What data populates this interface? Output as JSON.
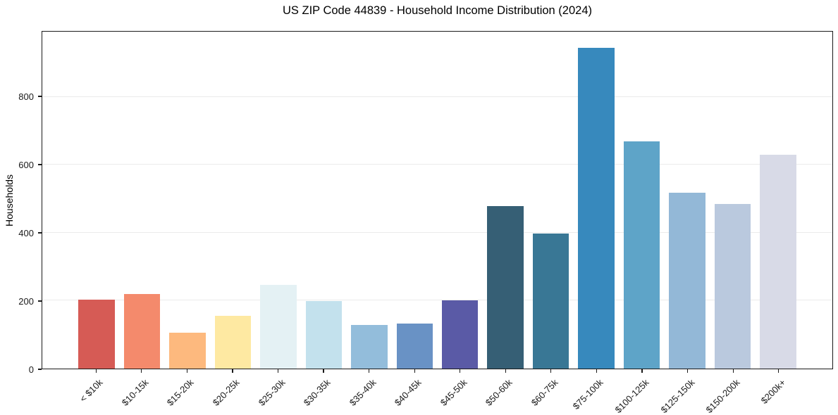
{
  "header": {
    "title": "US ZIP Code 44839 - Household Income Distribution (2024)"
  },
  "chart_data": {
    "type": "bar",
    "title": "US ZIP Code 44839 - Household Income Distribution (2024)",
    "xlabel": "",
    "ylabel": "Households",
    "categories": [
      "< $10k",
      "$10-15k",
      "$15-20k",
      "$20-25k",
      "$25-30k",
      "$30-35k",
      "$35-40k",
      "$40-45k",
      "$45-50k",
      "$50-60k",
      "$60-75k",
      "$75-100k",
      "$100-125k",
      "$125-150k",
      "$150-200k",
      "$200k+"
    ],
    "values": [
      203,
      220,
      105,
      155,
      247,
      198,
      128,
      132,
      200,
      478,
      398,
      945,
      668,
      517,
      484,
      630
    ],
    "bar_colors": [
      "#d65b55",
      "#f48a6c",
      "#fdb97e",
      "#fee9a2",
      "#e4f1f4",
      "#c3e1ed",
      "#93bddb",
      "#6992c5",
      "#5a5aa6",
      "#365f75",
      "#397795",
      "#3789bd",
      "#5ea4c8",
      "#93b8d7",
      "#bac9de",
      "#d8dae7"
    ],
    "ylim": [
      0,
      992
    ],
    "yticks": [
      0,
      200,
      400,
      600,
      800
    ],
    "grid": "horizontal-only",
    "gridline_color": "#ebebeb",
    "frame_color": "#1a1a1a",
    "legend": "none"
  }
}
